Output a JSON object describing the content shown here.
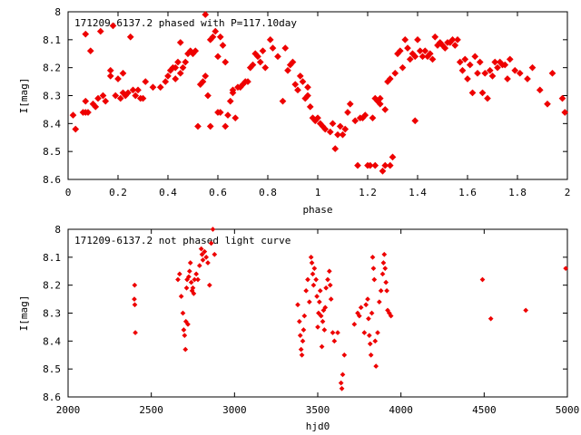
{
  "chart_data": [
    {
      "type": "scatter",
      "title": "171209-6137.2 phased with P=117.10day",
      "xlabel": "phase",
      "ylabel": "I[mag]",
      "xlim": [
        0,
        2
      ],
      "ylim": [
        8.6,
        8
      ],
      "y_inverted": true,
      "xticks": [
        "0",
        "0.2",
        "0.4",
        "0.6",
        "0.8",
        "1",
        "1.2",
        "1.4",
        "1.6",
        "1.8",
        "2"
      ],
      "yticks": [
        "8",
        "8.1",
        "8.2",
        "8.3",
        "8.4",
        "8.5",
        "8.6"
      ],
      "point_color": "#ee0000",
      "points": [
        [
          0.02,
          8.37
        ],
        [
          0.03,
          8.42
        ],
        [
          0.06,
          8.36
        ],
        [
          0.07,
          8.36
        ],
        [
          0.07,
          8.32
        ],
        [
          0.07,
          8.08
        ],
        [
          0.08,
          8.36
        ],
        [
          0.09,
          8.14
        ],
        [
          0.1,
          8.33
        ],
        [
          0.11,
          8.34
        ],
        [
          0.12,
          8.31
        ],
        [
          0.13,
          8.07
        ],
        [
          0.14,
          8.3
        ],
        [
          0.15,
          8.32
        ],
        [
          0.17,
          8.23
        ],
        [
          0.17,
          8.21
        ],
        [
          0.18,
          8.05
        ],
        [
          0.19,
          8.3
        ],
        [
          0.2,
          8.24
        ],
        [
          0.21,
          8.31
        ],
        [
          0.22,
          8.22
        ],
        [
          0.22,
          8.29
        ],
        [
          0.23,
          8.3
        ],
        [
          0.24,
          8.29
        ],
        [
          0.25,
          8.09
        ],
        [
          0.26,
          8.28
        ],
        [
          0.27,
          8.3
        ],
        [
          0.28,
          8.28
        ],
        [
          0.29,
          8.31
        ],
        [
          0.3,
          8.31
        ],
        [
          0.31,
          8.25
        ],
        [
          0.34,
          8.27
        ],
        [
          0.37,
          8.27
        ],
        [
          0.39,
          8.25
        ],
        [
          0.4,
          8.23
        ],
        [
          0.41,
          8.21
        ],
        [
          0.42,
          8.2
        ],
        [
          0.43,
          8.24
        ],
        [
          0.43,
          8.2
        ],
        [
          0.44,
          8.18
        ],
        [
          0.45,
          8.11
        ],
        [
          0.45,
          8.22
        ],
        [
          0.46,
          8.2
        ],
        [
          0.47,
          8.18
        ],
        [
          0.48,
          8.15
        ],
        [
          0.49,
          8.14
        ],
        [
          0.5,
          8.15
        ],
        [
          0.51,
          8.14
        ],
        [
          0.52,
          8.41
        ],
        [
          0.53,
          8.26
        ],
        [
          0.54,
          8.25
        ],
        [
          0.55,
          8.23
        ],
        [
          0.55,
          8.01
        ],
        [
          0.56,
          8.3
        ],
        [
          0.57,
          8.41
        ],
        [
          0.57,
          8.1
        ],
        [
          0.58,
          8.09
        ],
        [
          0.59,
          8.07
        ],
        [
          0.6,
          8.36
        ],
        [
          0.6,
          8.16
        ],
        [
          0.61,
          8.09
        ],
        [
          0.61,
          8.36
        ],
        [
          0.62,
          8.12
        ],
        [
          0.63,
          8.18
        ],
        [
          0.63,
          8.41
        ],
        [
          0.64,
          8.37
        ],
        [
          0.65,
          8.32
        ],
        [
          0.66,
          8.29
        ],
        [
          0.66,
          8.28
        ],
        [
          0.67,
          8.38
        ],
        [
          0.68,
          8.27
        ],
        [
          0.69,
          8.27
        ],
        [
          0.7,
          8.26
        ],
        [
          0.71,
          8.25
        ],
        [
          0.72,
          8.25
        ],
        [
          0.73,
          8.2
        ],
        [
          0.74,
          8.19
        ],
        [
          0.75,
          8.15
        ],
        [
          0.76,
          8.16
        ],
        [
          0.77,
          8.18
        ],
        [
          0.78,
          8.14
        ],
        [
          0.79,
          8.2
        ],
        [
          0.81,
          8.1
        ],
        [
          0.82,
          8.13
        ],
        [
          0.84,
          8.16
        ],
        [
          0.86,
          8.32
        ],
        [
          0.87,
          8.13
        ],
        [
          0.88,
          8.21
        ],
        [
          0.89,
          8.19
        ],
        [
          0.9,
          8.18
        ],
        [
          0.91,
          8.26
        ],
        [
          0.92,
          8.28
        ],
        [
          0.93,
          8.23
        ],
        [
          0.94,
          8.25
        ],
        [
          0.95,
          8.31
        ],
        [
          0.96,
          8.3
        ],
        [
          0.96,
          8.27
        ],
        [
          0.97,
          8.34
        ],
        [
          0.98,
          8.38
        ],
        [
          0.99,
          8.39
        ],
        [
          1.0,
          8.38
        ],
        [
          1.01,
          8.4
        ],
        [
          1.02,
          8.41
        ],
        [
          1.03,
          8.42
        ],
        [
          1.05,
          8.43
        ],
        [
          1.06,
          8.4
        ],
        [
          1.07,
          8.49
        ],
        [
          1.08,
          8.44
        ],
        [
          1.09,
          8.41
        ],
        [
          1.1,
          8.44
        ],
        [
          1.11,
          8.42
        ],
        [
          1.12,
          8.36
        ],
        [
          1.13,
          8.33
        ],
        [
          1.15,
          8.39
        ],
        [
          1.16,
          8.55
        ],
        [
          1.17,
          8.38
        ],
        [
          1.18,
          8.38
        ],
        [
          1.19,
          8.37
        ],
        [
          1.2,
          8.55
        ],
        [
          1.21,
          8.55
        ],
        [
          1.22,
          8.38
        ],
        [
          1.23,
          8.31
        ],
        [
          1.23,
          8.55
        ],
        [
          1.24,
          8.32
        ],
        [
          1.25,
          8.33
        ],
        [
          1.25,
          8.31
        ],
        [
          1.26,
          8.57
        ],
        [
          1.27,
          8.35
        ],
        [
          1.27,
          8.55
        ],
        [
          1.28,
          8.25
        ],
        [
          1.29,
          8.24
        ],
        [
          1.29,
          8.55
        ],
        [
          1.3,
          8.52
        ],
        [
          1.31,
          8.22
        ],
        [
          1.32,
          8.15
        ],
        [
          1.33,
          8.14
        ],
        [
          1.34,
          8.2
        ],
        [
          1.35,
          8.1
        ],
        [
          1.36,
          8.13
        ],
        [
          1.37,
          8.17
        ],
        [
          1.38,
          8.15
        ],
        [
          1.39,
          8.16
        ],
        [
          1.39,
          8.39
        ],
        [
          1.4,
          8.1
        ],
        [
          1.41,
          8.14
        ],
        [
          1.42,
          8.16
        ],
        [
          1.43,
          8.14
        ],
        [
          1.44,
          8.16
        ],
        [
          1.45,
          8.15
        ],
        [
          1.46,
          8.17
        ],
        [
          1.47,
          8.09
        ],
        [
          1.48,
          8.12
        ],
        [
          1.49,
          8.11
        ],
        [
          1.5,
          8.12
        ],
        [
          1.51,
          8.13
        ],
        [
          1.52,
          8.11
        ],
        [
          1.53,
          8.11
        ],
        [
          1.54,
          8.1
        ],
        [
          1.55,
          8.12
        ],
        [
          1.56,
          8.1
        ],
        [
          1.57,
          8.18
        ],
        [
          1.58,
          8.21
        ],
        [
          1.59,
          8.17
        ],
        [
          1.6,
          8.24
        ],
        [
          1.61,
          8.19
        ],
        [
          1.62,
          8.29
        ],
        [
          1.63,
          8.16
        ],
        [
          1.64,
          8.22
        ],
        [
          1.65,
          8.18
        ],
        [
          1.66,
          8.29
        ],
        [
          1.67,
          8.22
        ],
        [
          1.68,
          8.31
        ],
        [
          1.69,
          8.21
        ],
        [
          1.7,
          8.23
        ],
        [
          1.71,
          8.18
        ],
        [
          1.72,
          8.2
        ],
        [
          1.73,
          8.18
        ],
        [
          1.74,
          8.19
        ],
        [
          1.75,
          8.19
        ],
        [
          1.76,
          8.24
        ],
        [
          1.77,
          8.17
        ],
        [
          1.79,
          8.21
        ],
        [
          1.81,
          8.22
        ],
        [
          1.84,
          8.24
        ],
        [
          1.86,
          8.2
        ],
        [
          1.89,
          8.28
        ],
        [
          1.92,
          8.33
        ],
        [
          1.94,
          8.22
        ],
        [
          1.98,
          8.31
        ],
        [
          1.99,
          8.36
        ]
      ]
    },
    {
      "type": "scatter",
      "title": "171209-6137.2 not phased light curve",
      "xlabel": "hjd0",
      "ylabel": "I[mag]",
      "xlim": [
        2000,
        5000
      ],
      "ylim": [
        8.6,
        8
      ],
      "y_inverted": true,
      "xticks": [
        "2000",
        "2500",
        "3000",
        "3500",
        "4000",
        "4500",
        "5000"
      ],
      "yticks": [
        "8",
        "8.1",
        "8.2",
        "8.3",
        "8.4",
        "8.5",
        "8.6"
      ],
      "point_color": "#ee0000",
      "points": [
        [
          2398,
          8.25
        ],
        [
          2400,
          8.2
        ],
        [
          2401,
          8.27
        ],
        [
          2404,
          8.37
        ],
        [
          2660,
          8.18
        ],
        [
          2670,
          8.16
        ],
        [
          2680,
          8.24
        ],
        [
          2690,
          8.3
        ],
        [
          2695,
          8.36
        ],
        [
          2700,
          8.38
        ],
        [
          2705,
          8.43
        ],
        [
          2708,
          8.33
        ],
        [
          2712,
          8.21
        ],
        [
          2715,
          8.18
        ],
        [
          2720,
          8.34
        ],
        [
          2725,
          8.17
        ],
        [
          2730,
          8.15
        ],
        [
          2735,
          8.12
        ],
        [
          2740,
          8.19
        ],
        [
          2745,
          8.22
        ],
        [
          2750,
          8.21
        ],
        [
          2755,
          8.23
        ],
        [
          2760,
          8.18
        ],
        [
          2770,
          8.16
        ],
        [
          2780,
          8.18
        ],
        [
          2790,
          8.13
        ],
        [
          2800,
          8.07
        ],
        [
          2805,
          8.09
        ],
        [
          2810,
          8.11
        ],
        [
          2820,
          8.08
        ],
        [
          2830,
          8.1
        ],
        [
          2840,
          8.12
        ],
        [
          2850,
          8.2
        ],
        [
          2860,
          8.05
        ],
        [
          2870,
          8.0
        ],
        [
          2880,
          8.09
        ],
        [
          3380,
          8.27
        ],
        [
          3390,
          8.33
        ],
        [
          3395,
          8.38
        ],
        [
          3400,
          8.43
        ],
        [
          3405,
          8.45
        ],
        [
          3410,
          8.4
        ],
        [
          3415,
          8.36
        ],
        [
          3420,
          8.31
        ],
        [
          3430,
          8.22
        ],
        [
          3440,
          8.18
        ],
        [
          3450,
          8.26
        ],
        [
          3460,
          8.1
        ],
        [
          3465,
          8.12
        ],
        [
          3470,
          8.16
        ],
        [
          3475,
          8.2
        ],
        [
          3480,
          8.14
        ],
        [
          3490,
          8.18
        ],
        [
          3495,
          8.24
        ],
        [
          3500,
          8.35
        ],
        [
          3505,
          8.3
        ],
        [
          3510,
          8.26
        ],
        [
          3515,
          8.22
        ],
        [
          3520,
          8.31
        ],
        [
          3525,
          8.42
        ],
        [
          3530,
          8.33
        ],
        [
          3535,
          8.29
        ],
        [
          3540,
          8.36
        ],
        [
          3545,
          8.28
        ],
        [
          3550,
          8.21
        ],
        [
          3560,
          8.18
        ],
        [
          3570,
          8.15
        ],
        [
          3575,
          8.2
        ],
        [
          3580,
          8.25
        ],
        [
          3590,
          8.37
        ],
        [
          3600,
          8.4
        ],
        [
          3620,
          8.37
        ],
        [
          3640,
          8.55
        ],
        [
          3645,
          8.57
        ],
        [
          3650,
          8.52
        ],
        [
          3660,
          8.45
        ],
        [
          3720,
          8.34
        ],
        [
          3740,
          8.3
        ],
        [
          3750,
          8.31
        ],
        [
          3760,
          8.28
        ],
        [
          3780,
          8.37
        ],
        [
          3790,
          8.27
        ],
        [
          3800,
          8.25
        ],
        [
          3805,
          8.32
        ],
        [
          3810,
          8.38
        ],
        [
          3815,
          8.41
        ],
        [
          3820,
          8.45
        ],
        [
          3825,
          8.3
        ],
        [
          3830,
          8.1
        ],
        [
          3835,
          8.14
        ],
        [
          3840,
          8.18
        ],
        [
          3845,
          8.4
        ],
        [
          3850,
          8.49
        ],
        [
          3860,
          8.37
        ],
        [
          3870,
          8.26
        ],
        [
          3880,
          8.22
        ],
        [
          3890,
          8.16
        ],
        [
          3895,
          8.12
        ],
        [
          3900,
          8.09
        ],
        [
          3905,
          8.14
        ],
        [
          3910,
          8.19
        ],
        [
          3915,
          8.22
        ],
        [
          3920,
          8.29
        ],
        [
          3930,
          8.3
        ],
        [
          3940,
          8.31
        ],
        [
          4490,
          8.18
        ],
        [
          4540,
          8.32
        ],
        [
          4750,
          8.29
        ],
        [
          4990,
          8.14
        ]
      ]
    }
  ]
}
